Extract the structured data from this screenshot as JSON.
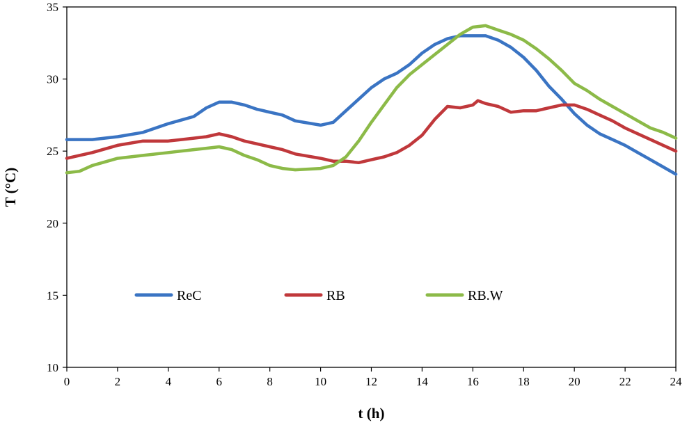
{
  "chart_data": {
    "type": "line",
    "xlabel_prefix": "t (",
    "xlabel_unit": "h",
    "xlabel_suffix": ")",
    "ylabel": "T (°C)",
    "xlim": [
      0,
      24
    ],
    "ylim": [
      10,
      35
    ],
    "xticks": [
      0,
      2,
      4,
      6,
      8,
      10,
      12,
      14,
      16,
      18,
      20,
      22,
      24
    ],
    "yticks": [
      10,
      15,
      20,
      25,
      30,
      35
    ],
    "grid": false,
    "legend": "inside, center-left, horizontal",
    "series": [
      {
        "name": "ReC",
        "color": "#3a74c3",
        "points": [
          [
            0,
            25.8
          ],
          [
            1,
            25.8
          ],
          [
            2,
            26.0
          ],
          [
            3,
            26.3
          ],
          [
            4,
            26.9
          ],
          [
            5,
            27.4
          ],
          [
            5.5,
            28.0
          ],
          [
            6,
            28.4
          ],
          [
            6.5,
            28.4
          ],
          [
            7,
            28.2
          ],
          [
            7.5,
            27.9
          ],
          [
            8,
            27.7
          ],
          [
            8.5,
            27.5
          ],
          [
            9,
            27.1
          ],
          [
            10,
            26.8
          ],
          [
            10.5,
            27.0
          ],
          [
            11,
            27.8
          ],
          [
            11.5,
            28.6
          ],
          [
            12,
            29.4
          ],
          [
            12.5,
            30.0
          ],
          [
            13,
            30.4
          ],
          [
            13.5,
            31.0
          ],
          [
            14,
            31.8
          ],
          [
            14.5,
            32.4
          ],
          [
            15,
            32.8
          ],
          [
            15.5,
            33.0
          ],
          [
            16,
            33.0
          ],
          [
            16.5,
            33.0
          ],
          [
            17,
            32.7
          ],
          [
            17.5,
            32.2
          ],
          [
            18,
            31.5
          ],
          [
            18.5,
            30.6
          ],
          [
            19,
            29.5
          ],
          [
            19.5,
            28.6
          ],
          [
            20,
            27.6
          ],
          [
            20.5,
            26.8
          ],
          [
            21,
            26.2
          ],
          [
            21.5,
            25.8
          ],
          [
            22,
            25.4
          ],
          [
            22.5,
            24.9
          ],
          [
            23,
            24.4
          ],
          [
            23.5,
            23.9
          ],
          [
            24,
            23.4
          ]
        ]
      },
      {
        "name": "RB",
        "color": "#c0383b",
        "points": [
          [
            0,
            24.5
          ],
          [
            1,
            24.9
          ],
          [
            2,
            25.4
          ],
          [
            3,
            25.7
          ],
          [
            4,
            25.7
          ],
          [
            5,
            25.9
          ],
          [
            5.5,
            26.0
          ],
          [
            6,
            26.2
          ],
          [
            6.5,
            26.0
          ],
          [
            7,
            25.7
          ],
          [
            7.5,
            25.5
          ],
          [
            8,
            25.3
          ],
          [
            8.5,
            25.1
          ],
          [
            9,
            24.8
          ],
          [
            10,
            24.5
          ],
          [
            10.5,
            24.3
          ],
          [
            11,
            24.3
          ],
          [
            11.5,
            24.2
          ],
          [
            12,
            24.4
          ],
          [
            12.5,
            24.6
          ],
          [
            13,
            24.9
          ],
          [
            13.5,
            25.4
          ],
          [
            14,
            26.1
          ],
          [
            14.5,
            27.2
          ],
          [
            15,
            28.1
          ],
          [
            15.5,
            28.0
          ],
          [
            16,
            28.2
          ],
          [
            16.2,
            28.5
          ],
          [
            16.5,
            28.3
          ],
          [
            17,
            28.1
          ],
          [
            17.5,
            27.7
          ],
          [
            18,
            27.8
          ],
          [
            18.5,
            27.8
          ],
          [
            19,
            28.0
          ],
          [
            19.5,
            28.2
          ],
          [
            20,
            28.2
          ],
          [
            20.5,
            27.9
          ],
          [
            21,
            27.5
          ],
          [
            21.5,
            27.1
          ],
          [
            22,
            26.6
          ],
          [
            22.5,
            26.2
          ],
          [
            23,
            25.8
          ],
          [
            23.5,
            25.4
          ],
          [
            24,
            25.0
          ]
        ]
      },
      {
        "name": "RB.W",
        "color": "#8cba48",
        "points": [
          [
            0,
            23.5
          ],
          [
            0.5,
            23.6
          ],
          [
            1,
            24.0
          ],
          [
            2,
            24.5
          ],
          [
            3,
            24.7
          ],
          [
            4,
            24.9
          ],
          [
            5,
            25.1
          ],
          [
            5.5,
            25.2
          ],
          [
            6,
            25.3
          ],
          [
            6.5,
            25.1
          ],
          [
            7,
            24.7
          ],
          [
            7.5,
            24.4
          ],
          [
            8,
            24.0
          ],
          [
            8.5,
            23.8
          ],
          [
            9,
            23.7
          ],
          [
            10,
            23.8
          ],
          [
            10.5,
            24.0
          ],
          [
            11,
            24.6
          ],
          [
            11.5,
            25.7
          ],
          [
            12,
            27.0
          ],
          [
            12.5,
            28.2
          ],
          [
            13,
            29.4
          ],
          [
            13.5,
            30.3
          ],
          [
            14,
            31.0
          ],
          [
            14.5,
            31.7
          ],
          [
            15,
            32.4
          ],
          [
            15.5,
            33.1
          ],
          [
            16,
            33.6
          ],
          [
            16.5,
            33.7
          ],
          [
            17,
            33.4
          ],
          [
            17.5,
            33.1
          ],
          [
            18,
            32.7
          ],
          [
            18.5,
            32.1
          ],
          [
            19,
            31.4
          ],
          [
            19.5,
            30.6
          ],
          [
            20,
            29.7
          ],
          [
            20.5,
            29.2
          ],
          [
            21,
            28.6
          ],
          [
            21.5,
            28.1
          ],
          [
            22,
            27.6
          ],
          [
            22.5,
            27.1
          ],
          [
            23,
            26.6
          ],
          [
            23.5,
            26.3
          ],
          [
            24,
            25.9
          ]
        ]
      }
    ]
  }
}
